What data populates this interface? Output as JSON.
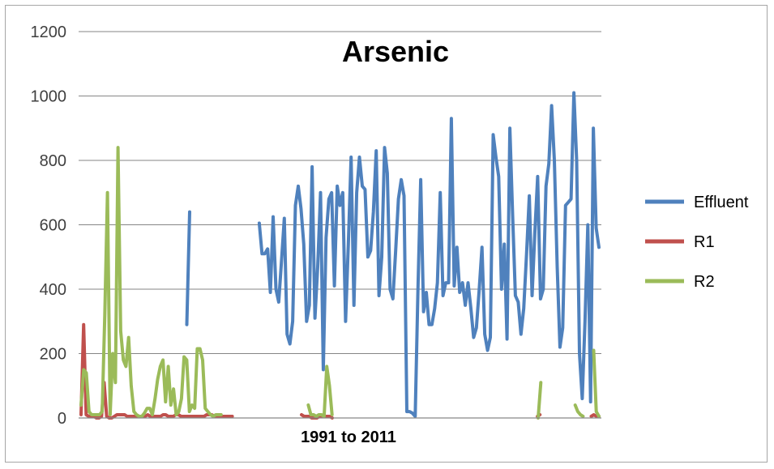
{
  "chart_data": {
    "type": "line",
    "title": "Arsenic",
    "xlabel": "1991 to 2011",
    "ylabel": "",
    "ylim": [
      0,
      1200
    ],
    "yticks": [
      0,
      200,
      400,
      600,
      800,
      1000,
      1200
    ],
    "grid": true,
    "legend_position": "right",
    "series": [
      {
        "name": "Effluent",
        "color": "#4f81bd",
        "values": [
          null,
          null,
          null,
          null,
          null,
          null,
          null,
          null,
          null,
          null,
          null,
          null,
          null,
          null,
          null,
          null,
          null,
          null,
          null,
          null,
          null,
          null,
          null,
          null,
          null,
          null,
          null,
          null,
          null,
          null,
          null,
          null,
          null,
          null,
          null,
          null,
          null,
          null,
          290,
          640,
          null,
          null,
          null,
          null,
          null,
          null,
          null,
          null,
          null,
          null,
          null,
          null,
          null,
          null,
          null,
          null,
          null,
          null,
          null,
          null,
          null,
          null,
          null,
          null,
          605,
          510,
          510,
          525,
          390,
          625,
          400,
          360,
          490,
          620,
          260,
          230,
          300,
          660,
          720,
          650,
          540,
          300,
          350,
          780,
          310,
          470,
          700,
          150,
          560,
          680,
          700,
          410,
          720,
          660,
          700,
          300,
          540,
          810,
          350,
          700,
          810,
          720,
          710,
          500,
          520,
          640,
          830,
          380,
          500,
          840,
          760,
          400,
          370,
          520,
          680,
          740,
          690,
          20,
          20,
          15,
          5,
          400,
          740,
          330,
          390,
          290,
          290,
          340,
          420,
          700,
          380,
          420,
          420,
          930,
          410,
          530,
          390,
          420,
          350,
          420,
          340,
          250,
          280,
          400,
          530,
          260,
          210,
          250,
          880,
          810,
          750,
          400,
          540,
          245,
          900,
          630,
          380,
          360,
          260,
          340,
          510,
          690,
          380,
          580,
          750,
          370,
          400,
          720,
          790,
          970,
          800,
          470,
          220,
          280,
          660,
          670,
          680,
          1010,
          800,
          200,
          60,
          300,
          600,
          50,
          900,
          590,
          530
        ]
      },
      {
        "name": "R1",
        "color": "#c0504d",
        "values": [
          10,
          290,
          10,
          5,
          5,
          5,
          0,
          0,
          5,
          110,
          5,
          0,
          0,
          5,
          10,
          10,
          10,
          10,
          5,
          5,
          5,
          5,
          5,
          5,
          5,
          5,
          10,
          5,
          5,
          5,
          5,
          5,
          10,
          10,
          5,
          5,
          5,
          10,
          10,
          5,
          5,
          5,
          5,
          5,
          5,
          5,
          5,
          5,
          5,
          10,
          10,
          10,
          5,
          5,
          5,
          5,
          5,
          5,
          5,
          5,
          null,
          null,
          null,
          null,
          null,
          null,
          null,
          null,
          null,
          null,
          null,
          null,
          null,
          null,
          null,
          null,
          null,
          null,
          null,
          null,
          null,
          null,
          null,
          null,
          null,
          null,
          10,
          5,
          5,
          5,
          0,
          0,
          0,
          5,
          5,
          5,
          5,
          5,
          0,
          null,
          null,
          null,
          null,
          null,
          null,
          null,
          null,
          null,
          null,
          null,
          null,
          null,
          null,
          null,
          null,
          null,
          null,
          null,
          null,
          null,
          null,
          null,
          null,
          null,
          null,
          null,
          null,
          null,
          null,
          null,
          null,
          null,
          null,
          null,
          null,
          null,
          null,
          null,
          null,
          null,
          null,
          null,
          null,
          null,
          null,
          null,
          null,
          null,
          null,
          null,
          null,
          null,
          null,
          null,
          null,
          null,
          null,
          null,
          null,
          null,
          null,
          null,
          null,
          null,
          null,
          null,
          null,
          null,
          null,
          null,
          null,
          null,
          null,
          null,
          null,
          null,
          null,
          null,
          5,
          10,
          null,
          null,
          null,
          null,
          null,
          null,
          null,
          null,
          null,
          null,
          null,
          null,
          null,
          5,
          null,
          null,
          null,
          null,
          null,
          5,
          10,
          5,
          5
        ]
      },
      {
        "name": "R2",
        "color": "#9bbb59",
        "values": [
          40,
          150,
          140,
          20,
          10,
          10,
          10,
          10,
          20,
          320,
          700,
          10,
          200,
          110,
          840,
          270,
          180,
          160,
          250,
          100,
          20,
          10,
          5,
          5,
          15,
          30,
          30,
          10,
          60,
          120,
          160,
          180,
          50,
          160,
          40,
          90,
          10,
          20,
          60,
          190,
          180,
          20,
          40,
          30,
          215,
          215,
          180,
          30,
          20,
          10,
          5,
          10,
          10,
          10,
          null,
          null,
          null,
          null,
          null,
          null,
          null,
          null,
          null,
          null,
          null,
          null,
          null,
          null,
          null,
          null,
          null,
          null,
          null,
          null,
          null,
          null,
          null,
          null,
          null,
          null,
          null,
          null,
          null,
          null,
          null,
          null,
          40,
          10,
          10,
          5,
          10,
          10,
          5,
          160,
          100,
          10,
          null,
          null,
          null,
          null,
          null,
          null,
          null,
          null,
          null,
          null,
          null,
          null,
          null,
          null,
          null,
          null,
          null,
          null,
          null,
          null,
          null,
          null,
          null,
          null,
          null,
          null,
          null,
          null,
          null,
          null,
          null,
          null,
          null,
          null,
          null,
          null,
          null,
          null,
          null,
          null,
          null,
          null,
          null,
          null,
          null,
          null,
          null,
          null,
          null,
          null,
          null,
          null,
          null,
          null,
          null,
          null,
          null,
          null,
          null,
          null,
          null,
          null,
          null,
          null,
          null,
          null,
          null,
          null,
          null,
          null,
          null,
          null,
          null,
          null,
          null,
          null,
          null,
          0,
          110,
          null,
          null,
          null,
          null,
          null,
          null,
          null,
          null,
          null,
          null,
          null,
          null,
          40,
          20,
          10,
          5,
          null,
          null,
          null,
          210,
          20,
          5
        ]
      }
    ]
  }
}
